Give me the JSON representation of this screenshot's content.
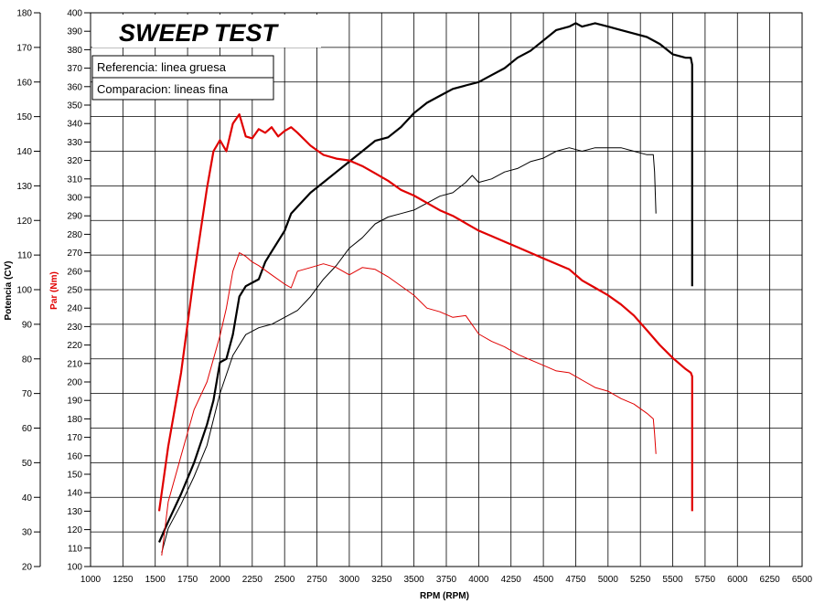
{
  "chart_data": {
    "type": "line",
    "title": "SWEEP TEST",
    "xlabel": "RPM (RPM)",
    "ylabel_power": "Potencia (CV)",
    "ylabel_torque": "Par (Nm)",
    "xlim": [
      1000,
      6500
    ],
    "ylim_power": [
      20,
      180
    ],
    "ylim_torque": [
      100,
      400
    ],
    "x_ticks": [
      1000,
      1250,
      1500,
      1750,
      2000,
      2250,
      2500,
      2750,
      3000,
      3250,
      3500,
      3750,
      4000,
      4250,
      4500,
      4750,
      5000,
      5250,
      5500,
      5750,
      6000,
      6250,
      6500
    ],
    "power_ticks": [
      20,
      30,
      40,
      50,
      60,
      70,
      80,
      90,
      100,
      110,
      120,
      130,
      140,
      150,
      160,
      170,
      180
    ],
    "torque_ticks": [
      100,
      110,
      120,
      130,
      140,
      150,
      160,
      170,
      180,
      190,
      200,
      210,
      220,
      230,
      240,
      250,
      260,
      270,
      280,
      290,
      300,
      310,
      320,
      330,
      340,
      350,
      360,
      370,
      380,
      390,
      400
    ],
    "grid": true,
    "legend": [
      "Referencia: linea gruesa",
      "Comparacion: lineas fina"
    ],
    "colors": {
      "power": "#000000",
      "torque": "#e00000",
      "grid": "#000000"
    },
    "series": [
      {
        "name": "Referencia",
        "quantity": "Potencia",
        "axis": "power",
        "line": "thick",
        "x": [
          1530,
          1600,
          1700,
          1800,
          1900,
          1950,
          2000,
          2050,
          2100,
          2150,
          2200,
          2250,
          2300,
          2350,
          2400,
          2500,
          2550,
          2600,
          2700,
          2800,
          2900,
          3000,
          3100,
          3200,
          3300,
          3400,
          3500,
          3600,
          3700,
          3800,
          3900,
          4000,
          4100,
          4200,
          4300,
          4400,
          4500,
          4600,
          4700,
          4750,
          4800,
          4900,
          5000,
          5100,
          5200,
          5300,
          5400,
          5500,
          5600,
          5640,
          5650,
          5650
        ],
        "y": [
          27,
          33,
          41,
          50,
          61,
          68,
          79,
          80,
          87,
          98,
          101,
          102,
          103,
          108,
          111,
          117,
          122,
          124,
          128,
          131,
          134,
          137,
          140,
          143,
          144,
          147,
          151,
          154,
          156,
          158,
          159,
          160,
          162,
          164,
          167,
          169,
          172,
          175,
          176,
          177,
          176,
          177,
          176,
          175,
          174,
          173,
          171,
          168,
          167,
          167,
          165,
          101
        ]
      },
      {
        "name": "Comparacion",
        "quantity": "Potencia",
        "axis": "power",
        "line": "thin",
        "x": [
          1550,
          1600,
          1700,
          1800,
          1900,
          2000,
          2100,
          2200,
          2300,
          2400,
          2500,
          2600,
          2700,
          2800,
          2900,
          3000,
          3100,
          3200,
          3300,
          3400,
          3500,
          3600,
          3700,
          3800,
          3900,
          3950,
          4000,
          4100,
          4200,
          4300,
          4400,
          4500,
          4600,
          4700,
          4800,
          4900,
          5000,
          5100,
          5200,
          5300,
          5350,
          5360,
          5370
        ],
        "y": [
          24,
          31,
          38,
          46,
          55,
          70,
          81,
          87,
          89,
          90,
          92,
          94,
          98,
          103,
          107,
          112,
          115,
          119,
          121,
          122,
          123,
          125,
          127,
          128,
          131,
          133,
          131,
          132,
          134,
          135,
          137,
          138,
          140,
          141,
          140,
          141,
          141,
          141,
          140,
          139,
          139,
          134,
          122
        ]
      },
      {
        "name": "Referencia",
        "quantity": "Par",
        "axis": "torque",
        "line": "thick",
        "x": [
          1530,
          1600,
          1700,
          1800,
          1900,
          1950,
          2000,
          2050,
          2100,
          2150,
          2200,
          2250,
          2300,
          2350,
          2400,
          2450,
          2500,
          2550,
          2600,
          2700,
          2800,
          2900,
          3000,
          3100,
          3200,
          3300,
          3400,
          3500,
          3600,
          3700,
          3800,
          3900,
          4000,
          4100,
          4200,
          4300,
          4400,
          4500,
          4600,
          4700,
          4800,
          4900,
          5000,
          5100,
          5200,
          5300,
          5400,
          5500,
          5600,
          5640,
          5650,
          5650
        ],
        "y": [
          130,
          165,
          205,
          258,
          305,
          325,
          331,
          325,
          340,
          345,
          333,
          332,
          337,
          335,
          338,
          333,
          336,
          338,
          335,
          328,
          323,
          321,
          320,
          317,
          313,
          309,
          304,
          301,
          297,
          293,
          290,
          286,
          282,
          279,
          276,
          273,
          270,
          267,
          264,
          261,
          255,
          251,
          247,
          242,
          236,
          228,
          220,
          213,
          207,
          205,
          203,
          130
        ]
      },
      {
        "name": "Comparacion",
        "quantity": "Par",
        "axis": "torque",
        "line": "thin",
        "x": [
          1550,
          1600,
          1700,
          1800,
          1900,
          2000,
          2050,
          2100,
          2150,
          2200,
          2250,
          2300,
          2400,
          2500,
          2550,
          2600,
          2700,
          2800,
          2900,
          3000,
          3100,
          3200,
          3300,
          3400,
          3500,
          3600,
          3700,
          3800,
          3900,
          3950,
          4000,
          4100,
          4200,
          4300,
          4400,
          4500,
          4600,
          4700,
          4800,
          4900,
          5000,
          5100,
          5200,
          5300,
          5350,
          5360,
          5370
        ],
        "y": [
          106,
          135,
          160,
          185,
          200,
          225,
          240,
          260,
          270,
          268,
          265,
          263,
          258,
          253,
          251,
          260,
          262,
          264,
          262,
          258,
          262,
          261,
          257,
          252,
          247,
          240,
          238,
          235,
          236,
          231,
          226,
          222,
          219,
          215,
          212,
          209,
          206,
          205,
          201,
          197,
          195,
          191,
          188,
          183,
          180,
          172,
          161
        ]
      }
    ]
  }
}
